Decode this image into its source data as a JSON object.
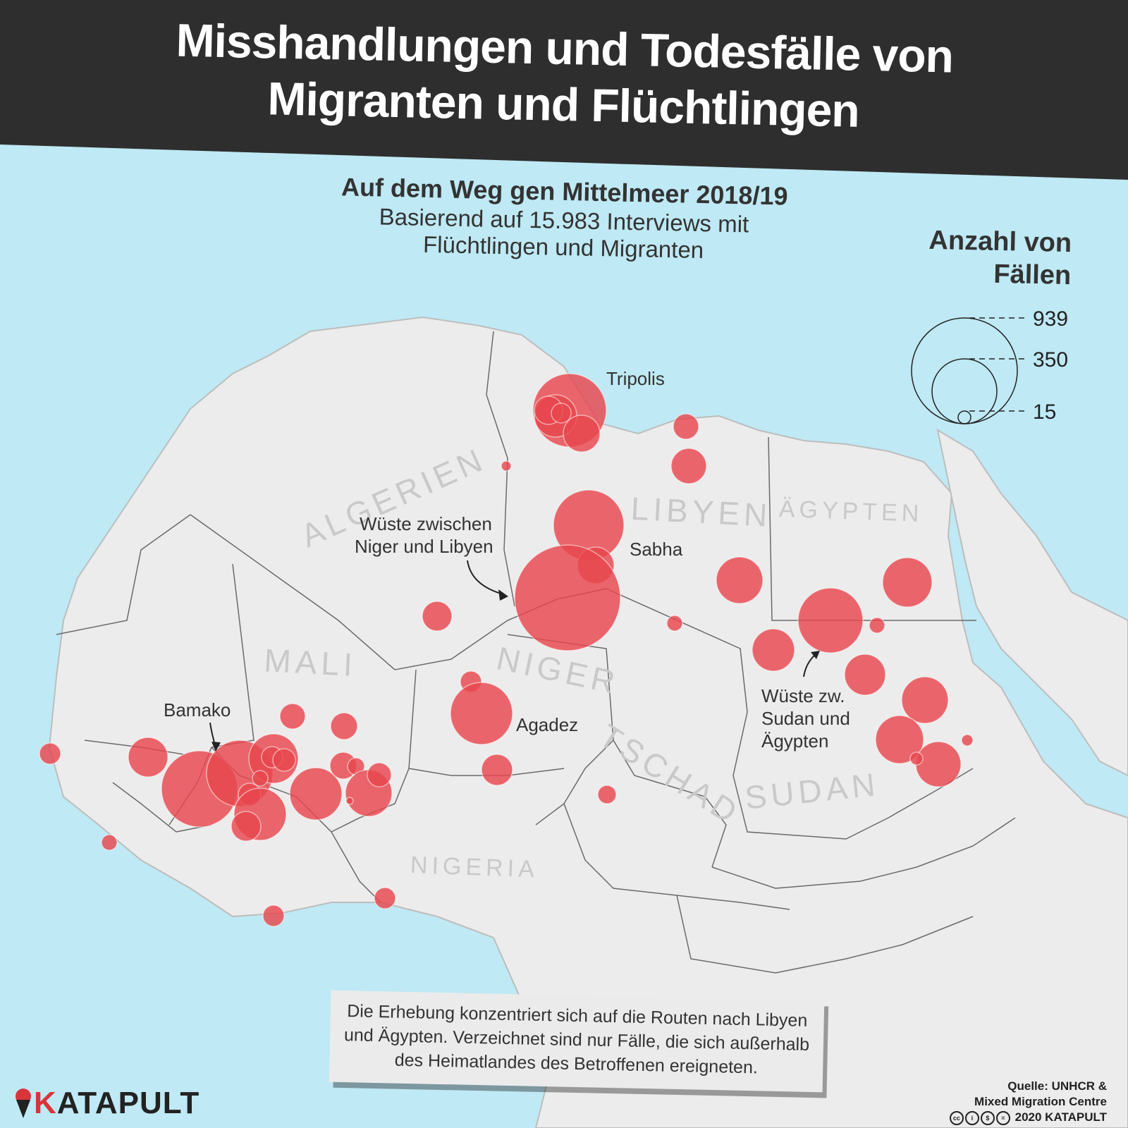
{
  "title": {
    "line1": "Misshandlungen und Todesfälle von",
    "line2": "Migranten und Flüchtlingen"
  },
  "subtitle": {
    "line1": "Auf dem Weg gen Mittelmeer 2018/19",
    "line2": "Basierend auf 15.983 Interviews mit",
    "line3": "Flüchtlingen und Migranten"
  },
  "legend": {
    "title_line1": "Anzahl von",
    "title_line2": "Fällen",
    "values": [
      "939",
      "350",
      "15"
    ]
  },
  "countries": {
    "algerien": "ALGERIEN",
    "libyen": "LIBYEN",
    "aegypten": "ÄGYPTEN",
    "mali": "MALI",
    "niger": "NIGER",
    "tschad": "TSCHAD",
    "sudan": "SUDAN",
    "nigeria": "NIGERIA"
  },
  "places": {
    "tripolis": "Tripolis",
    "sabha": "Sabha",
    "agadez": "Agadez",
    "bamako": "Bamako",
    "wueste_niger_libyen_1": "Wüste zwischen",
    "wueste_niger_libyen_2": "Niger und Libyen",
    "wueste_sudan_1": "Wüste zw.",
    "wueste_sudan_2": "Sudan und",
    "wueste_sudan_3": "Ägypten"
  },
  "note": {
    "line1": "Die Erhebung konzentriert sich auf die Routen nach Libyen",
    "line2": "und Ägypten. Verzeichnet sind nur Fälle, die sich außerhalb",
    "line3": "des Heimatlandes des Betroffenen ereigneten."
  },
  "source": {
    "line1": "Quelle: UNHCR &",
    "line2": "Mixed Migration Centre",
    "line3": "2020 KATAPULT"
  },
  "logo": {
    "first": "K",
    "rest": "ATAPULT"
  },
  "colors": {
    "water": "#bfe9f4",
    "land": "#ececec",
    "banner": "#2e2e2e",
    "circle_fill": "#e8474e",
    "circle_opacity": "0.82"
  }
}
